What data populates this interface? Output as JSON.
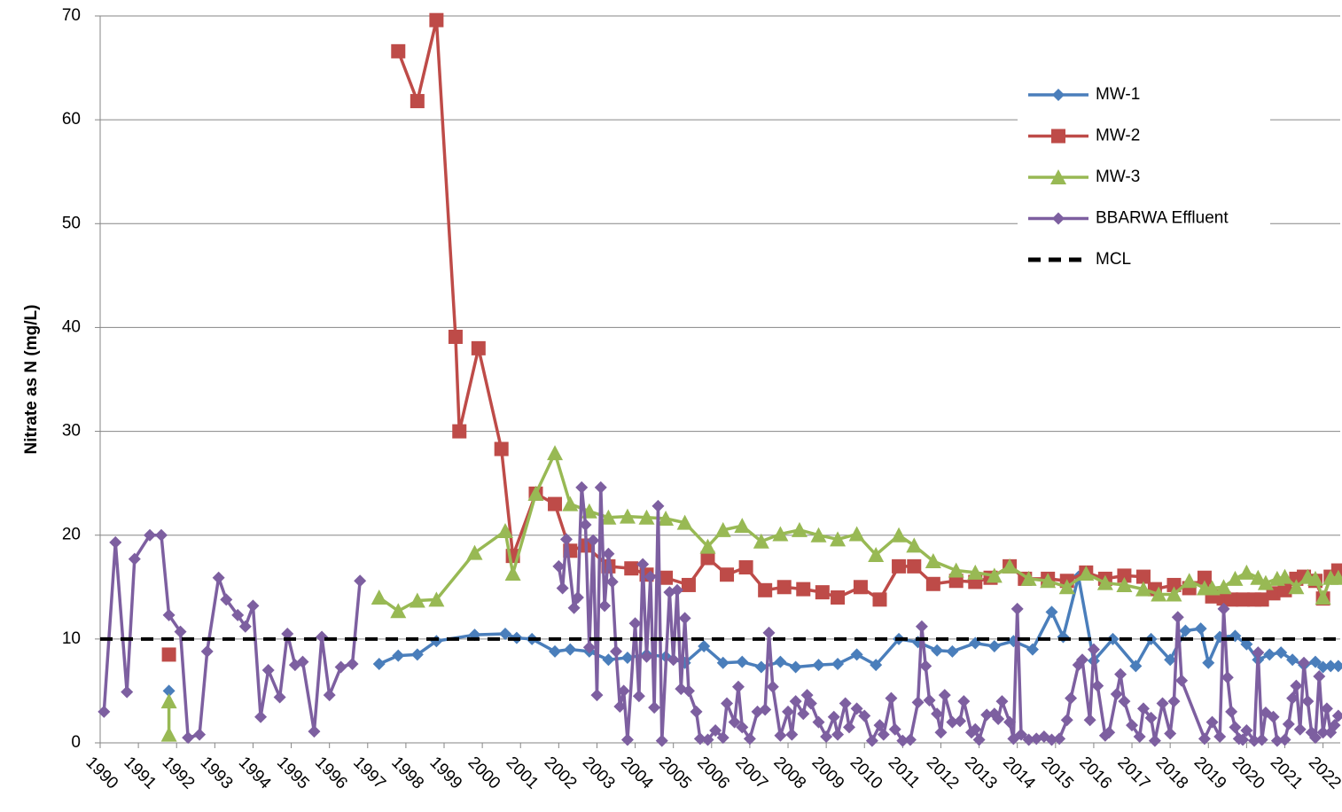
{
  "chart_data": {
    "type": "line",
    "y_label": "Nitrate as N (mg/L)",
    "xlim": [
      1990,
      2022.45
    ],
    "ylim": [
      0,
      70
    ],
    "xticks": [
      1990,
      1991,
      1992,
      1993,
      1994,
      1995,
      1996,
      1997,
      1998,
      1999,
      2000,
      2001,
      2002,
      2003,
      2004,
      2005,
      2006,
      2007,
      2008,
      2009,
      2010,
      2011,
      2012,
      2013,
      2014,
      2015,
      2016,
      2017,
      2018,
      2019,
      2020,
      2021,
      2022
    ],
    "yticks": [
      0,
      10,
      20,
      30,
      40,
      50,
      60,
      70
    ],
    "grid": true,
    "legend": "upper right",
    "series": [
      {
        "name": "MW-1",
        "color": "#4a7ebb",
        "marker": "diamond",
        "x": [
          1991.8,
          null,
          1997.3,
          1997.8,
          1998.3,
          1998.8,
          1999.8,
          2000.6,
          2000.9,
          2001.3,
          2001.9,
          2002.3,
          2002.8,
          2003.3,
          2003.8,
          2004.3,
          2004.8,
          2005.3,
          2005.8,
          2006.3,
          2006.8,
          2007.3,
          2007.8,
          2008.2,
          2008.8,
          2009.3,
          2009.8,
          2010.3,
          2010.9,
          2011.4,
          2011.9,
          2012.3,
          2012.9,
          2013.4,
          2013.9,
          2014.4,
          2014.9,
          2015.2,
          2015.6,
          2016.0,
          2016.5,
          2017.1,
          2017.5,
          2018.0,
          2018.4,
          2018.8,
          2019.0,
          2019.3,
          2019.7,
          2020.0,
          2020.3,
          2020.6,
          2020.9,
          2021.2,
          2021.5,
          2021.8,
          2022.0,
          2022.2,
          2022.4
        ],
        "values": [
          5.0,
          null,
          7.6,
          8.4,
          8.5,
          9.8,
          10.4,
          10.5,
          10.1,
          10.0,
          8.8,
          9.0,
          8.8,
          8.0,
          8.2,
          8.5,
          8.3,
          7.7,
          9.3,
          7.7,
          7.8,
          7.3,
          7.8,
          7.3,
          7.5,
          7.6,
          8.5,
          7.5,
          10.0,
          9.7,
          8.9,
          8.8,
          9.6,
          9.3,
          9.8,
          9.0,
          12.6,
          10.2,
          16.0,
          7.9,
          10.0,
          7.4,
          10.0,
          8.0,
          10.8,
          11.0,
          7.7,
          10.2,
          10.3,
          9.5,
          8.0,
          8.5,
          8.7,
          8.0,
          7.5,
          7.8,
          7.3,
          7.4,
          7.4
        ]
      },
      {
        "name": "MW-2",
        "color": "#be4b48",
        "marker": "square",
        "x": [
          1991.8,
          null,
          1997.8,
          1998.3,
          1998.8,
          1999.3,
          1999.4,
          1999.9,
          2000.5,
          2000.8,
          2001.4,
          2001.9,
          2002.3,
          2002.7,
          2003.3,
          2003.9,
          2004.3,
          2004.8,
          2005.4,
          2005.9,
          2006.4,
          2006.9,
          2007.4,
          2007.9,
          2008.4,
          2008.9,
          2009.3,
          2009.9,
          2010.4,
          2010.9,
          2011.3,
          2011.8,
          2012.4,
          2012.9,
          2013.3,
          2013.8,
          2014.2,
          2014.8,
          2015.3,
          2015.8,
          2016.3,
          2016.8,
          2017.3,
          2017.6,
          2018.1,
          2018.5,
          2018.9,
          2019.1,
          2019.4,
          2019.6,
          2019.9,
          2020.2,
          2020.4,
          2020.7,
          2021.0,
          2021.3,
          2021.5,
          2021.8,
          2022.0,
          2022.2,
          2022.4
        ],
        "values": [
          8.5,
          null,
          66.6,
          61.8,
          69.6,
          39.1,
          30.0,
          38.0,
          28.3,
          18.0,
          24.0,
          23.0,
          18.5,
          19.0,
          17.0,
          16.8,
          16.2,
          15.9,
          15.2,
          17.8,
          16.2,
          16.9,
          14.7,
          15.0,
          14.8,
          14.5,
          14.0,
          15.0,
          13.8,
          17.0,
          17.0,
          15.3,
          15.6,
          15.5,
          15.9,
          17.0,
          15.8,
          15.8,
          15.6,
          16.4,
          15.8,
          16.1,
          16.0,
          14.8,
          15.2,
          14.9,
          15.9,
          14.1,
          13.9,
          13.8,
          13.8,
          13.8,
          13.8,
          14.4,
          14.7,
          15.8,
          16.0,
          15.6,
          13.9,
          16.0,
          16.6
        ]
      },
      {
        "name": "MW-3",
        "color": "#98b954",
        "marker": "triangle",
        "x": [
          1991.8,
          1991.8,
          null,
          1997.3,
          1997.8,
          1998.3,
          1998.8,
          1999.8,
          2000.6,
          2000.8,
          2001.4,
          2001.9,
          2002.3,
          2002.8,
          2003.3,
          2003.8,
          2004.3,
          2004.8,
          2005.3,
          2005.9,
          2006.3,
          2006.8,
          2007.3,
          2007.8,
          2008.3,
          2008.8,
          2009.3,
          2009.8,
          2010.3,
          2010.9,
          2011.3,
          2011.8,
          2012.4,
          2012.9,
          2013.4,
          2013.8,
          2014.3,
          2014.8,
          2015.3,
          2015.8,
          2016.3,
          2016.8,
          2017.3,
          2017.7,
          2018.1,
          2018.5,
          2018.9,
          2019.1,
          2019.4,
          2019.7,
          2020.0,
          2020.3,
          2020.5,
          2020.8,
          2021.0,
          2021.3,
          2021.6,
          2021.8,
          2022.0,
          2022.2,
          2022.4
        ],
        "values": [
          4.0,
          0.8,
          null,
          14.0,
          12.7,
          13.7,
          13.8,
          18.3,
          20.4,
          16.3,
          24.0,
          27.9,
          23.0,
          22.3,
          21.7,
          21.8,
          21.7,
          21.6,
          21.2,
          18.9,
          20.5,
          20.9,
          19.4,
          20.1,
          20.5,
          20.0,
          19.6,
          20.1,
          18.1,
          20.0,
          19.0,
          17.5,
          16.6,
          16.4,
          16.1,
          17.0,
          15.8,
          15.6,
          15.0,
          16.3,
          15.4,
          15.2,
          14.8,
          14.3,
          14.3,
          15.6,
          14.9,
          14.9,
          15.0,
          15.8,
          16.4,
          15.9,
          15.4,
          15.8,
          16.0,
          15.0,
          16.0,
          15.8,
          14.0,
          15.9,
          15.9
        ]
      },
      {
        "name": "BBARWA Effluent",
        "color": "#7d5fa0",
        "marker": "diamond",
        "x": [
          1990.1,
          1990.4,
          1990.7,
          1990.9,
          1991.3,
          1991.6,
          1991.8,
          1992.1,
          1992.3,
          1992.6,
          1992.8,
          1993.1,
          1993.3,
          1993.6,
          1993.8,
          1994.0,
          1994.2,
          1994.4,
          1994.7,
          1994.9,
          1995.1,
          1995.3,
          1995.6,
          1995.8,
          1996.0,
          1996.3,
          1996.6,
          1996.8,
          null,
          2002.0,
          2002.1,
          2002.2,
          2002.4,
          2002.5,
          2002.6,
          2002.7,
          2002.8,
          2002.9,
          2003.0,
          2003.1,
          2003.2,
          2003.3,
          2003.4,
          2003.5,
          2003.6,
          2003.7,
          2003.8,
          2004.0,
          2004.1,
          2004.2,
          2004.3,
          2004.4,
          2004.5,
          2004.6,
          2004.7,
          2004.9,
          2005.0,
          2005.1,
          2005.2,
          2005.3,
          2005.4,
          2005.6,
          2005.7,
          2005.9,
          2006.1,
          2006.3,
          2006.4,
          2006.6,
          2006.7,
          2006.8,
          2007.0,
          2007.2,
          2007.4,
          2007.5,
          2007.6,
          2007.8,
          2008.0,
          2008.1,
          2008.2,
          2008.4,
          2008.5,
          2008.6,
          2008.8,
          2009.0,
          2009.2,
          2009.3,
          2009.5,
          2009.6,
          2009.8,
          2010.0,
          2010.2,
          2010.4,
          2010.5,
          2010.7,
          2010.8,
          2011.0,
          2011.2,
          2011.4,
          2011.5,
          2011.6,
          2011.7,
          2011.9,
          2012.0,
          2012.1,
          2012.3,
          2012.5,
          2012.6,
          2012.8,
          2012.9,
          2013.0,
          2013.2,
          2013.4,
          2013.5,
          2013.6,
          2013.8,
          2013.9,
          2014.0,
          2014.1,
          2014.3,
          2014.5,
          2014.7,
          2014.9,
          2015.1,
          2015.3,
          2015.4,
          2015.6,
          2015.7,
          2015.9,
          2016.0,
          2016.1,
          2016.3,
          2016.4,
          2016.6,
          2016.7,
          2016.8,
          2017.0,
          2017.2,
          2017.3,
          2017.5,
          2017.6,
          2017.8,
          2018.0,
          2018.1,
          2018.2,
          2018.3,
          2018.9,
          2019.1,
          2019.3,
          2019.4,
          2019.5,
          2019.6,
          2019.7,
          2019.8,
          2019.9,
          2020.0,
          2020.2,
          2020.3,
          2020.4,
          2020.5,
          2020.7,
          2020.8,
          2021.0,
          2021.1,
          2021.2,
          2021.3,
          2021.4,
          2021.5,
          2021.6,
          2021.7,
          2021.8,
          2021.9,
          2022.0,
          2022.1,
          2022.2,
          2022.3,
          2022.4
        ],
        "values": [
          3.0,
          19.3,
          4.9,
          17.7,
          20.0,
          20.0,
          12.3,
          10.7,
          0.5,
          0.8,
          8.8,
          15.9,
          13.8,
          12.3,
          11.2,
          13.2,
          2.5,
          7.0,
          4.4,
          10.5,
          7.5,
          7.8,
          1.1,
          10.2,
          4.6,
          7.3,
          7.6,
          15.6,
          null,
          17.0,
          14.9,
          19.6,
          13.0,
          14.0,
          24.6,
          21.0,
          9.2,
          19.5,
          4.6,
          24.6,
          13.2,
          18.2,
          15.5,
          8.8,
          3.5,
          5.0,
          0.3,
          11.5,
          4.5,
          17.2,
          8.3,
          16.0,
          3.4,
          22.8,
          0.2,
          14.5,
          8.0,
          14.7,
          5.2,
          12.0,
          5.0,
          3.0,
          0.4,
          0.3,
          1.2,
          0.5,
          3.8,
          2.0,
          5.4,
          1.5,
          0.4,
          3.0,
          3.2,
          10.6,
          5.4,
          0.7,
          3.0,
          0.8,
          4.0,
          2.8,
          4.6,
          3.8,
          2.0,
          0.6,
          2.5,
          0.8,
          3.8,
          1.5,
          3.3,
          2.6,
          0.2,
          1.7,
          0.8,
          4.3,
          1.3,
          0.2,
          0.3,
          3.9,
          11.2,
          7.4,
          4.1,
          2.8,
          1.0,
          4.6,
          2.0,
          2.1,
          4.0,
          1.0,
          1.3,
          0.3,
          2.7,
          2.8,
          2.3,
          4.0,
          2.0,
          0.4,
          12.9,
          0.8,
          0.3,
          0.4,
          0.6,
          0.3,
          0.4,
          2.2,
          4.3,
          7.5,
          8.0,
          2.2,
          9.0,
          5.5,
          0.7,
          1.0,
          4.7,
          6.6,
          4.0,
          1.7,
          0.6,
          3.3,
          2.4,
          0.2,
          3.8,
          0.9,
          4.0,
          12.1,
          6.0,
          0.4,
          2.0,
          0.6,
          12.9,
          6.3,
          3.0,
          1.5,
          0.4,
          0.3,
          1.2,
          0.2,
          8.7,
          0.3,
          2.9,
          2.5,
          0.2,
          0.3,
          1.8,
          4.3,
          5.5,
          1.3,
          7.7,
          4.0,
          1.0,
          0.5,
          6.4,
          1.0,
          3.3,
          1.0,
          1.7,
          2.6
        ]
      },
      {
        "name": "MCL",
        "color": "#000000",
        "dashed": true,
        "marker": "none",
        "x": [
          1990,
          2022.45
        ],
        "values": [
          10,
          10
        ]
      }
    ]
  }
}
